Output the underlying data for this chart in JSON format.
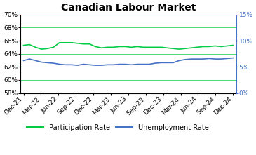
{
  "title": "Canadian Labour Market",
  "x_labels": [
    "Dec-21",
    "Mar-22",
    "Jun-22",
    "Sep-22",
    "Dec-22",
    "Mar-23",
    "Jun-23",
    "Sep-23",
    "Dec-23",
    "Mar-24",
    "Jun-24",
    "Sep-24",
    "Dec-24"
  ],
  "participation_rate": [
    65.3,
    65.4,
    65.0,
    64.7,
    64.8,
    65.0,
    65.7,
    65.7,
    65.7,
    65.6,
    65.5,
    65.5,
    65.1,
    64.9,
    65.0,
    65.0,
    65.1,
    65.1,
    65.0,
    65.1,
    65.0,
    65.0,
    65.0,
    65.0,
    64.9,
    64.8,
    64.7,
    64.8,
    64.9,
    65.0,
    65.1,
    65.1,
    65.2,
    65.1,
    65.2,
    65.3
  ],
  "unemployment_rate": [
    6.2,
    6.5,
    6.2,
    5.9,
    5.8,
    5.7,
    5.5,
    5.4,
    5.4,
    5.3,
    5.5,
    5.4,
    5.3,
    5.3,
    5.4,
    5.4,
    5.5,
    5.5,
    5.4,
    5.5,
    5.5,
    5.5,
    5.7,
    5.8,
    5.8,
    5.8,
    6.2,
    6.4,
    6.5,
    6.5,
    6.5,
    6.6,
    6.5,
    6.5,
    6.6,
    6.7
  ],
  "participation_color": "#00cc44",
  "unemployment_color": "#4472c4",
  "left_ylim": [
    58,
    70
  ],
  "left_yticks": [
    58,
    60,
    62,
    64,
    66,
    68,
    70
  ],
  "right_ylim": [
    0,
    15
  ],
  "right_yticks": [
    0,
    5,
    10,
    15
  ],
  "background_color": "#ffffff",
  "grid_color": "#00cc44",
  "title_fontsize": 10,
  "tick_fontsize": 6.5,
  "legend_fontsize": 7
}
